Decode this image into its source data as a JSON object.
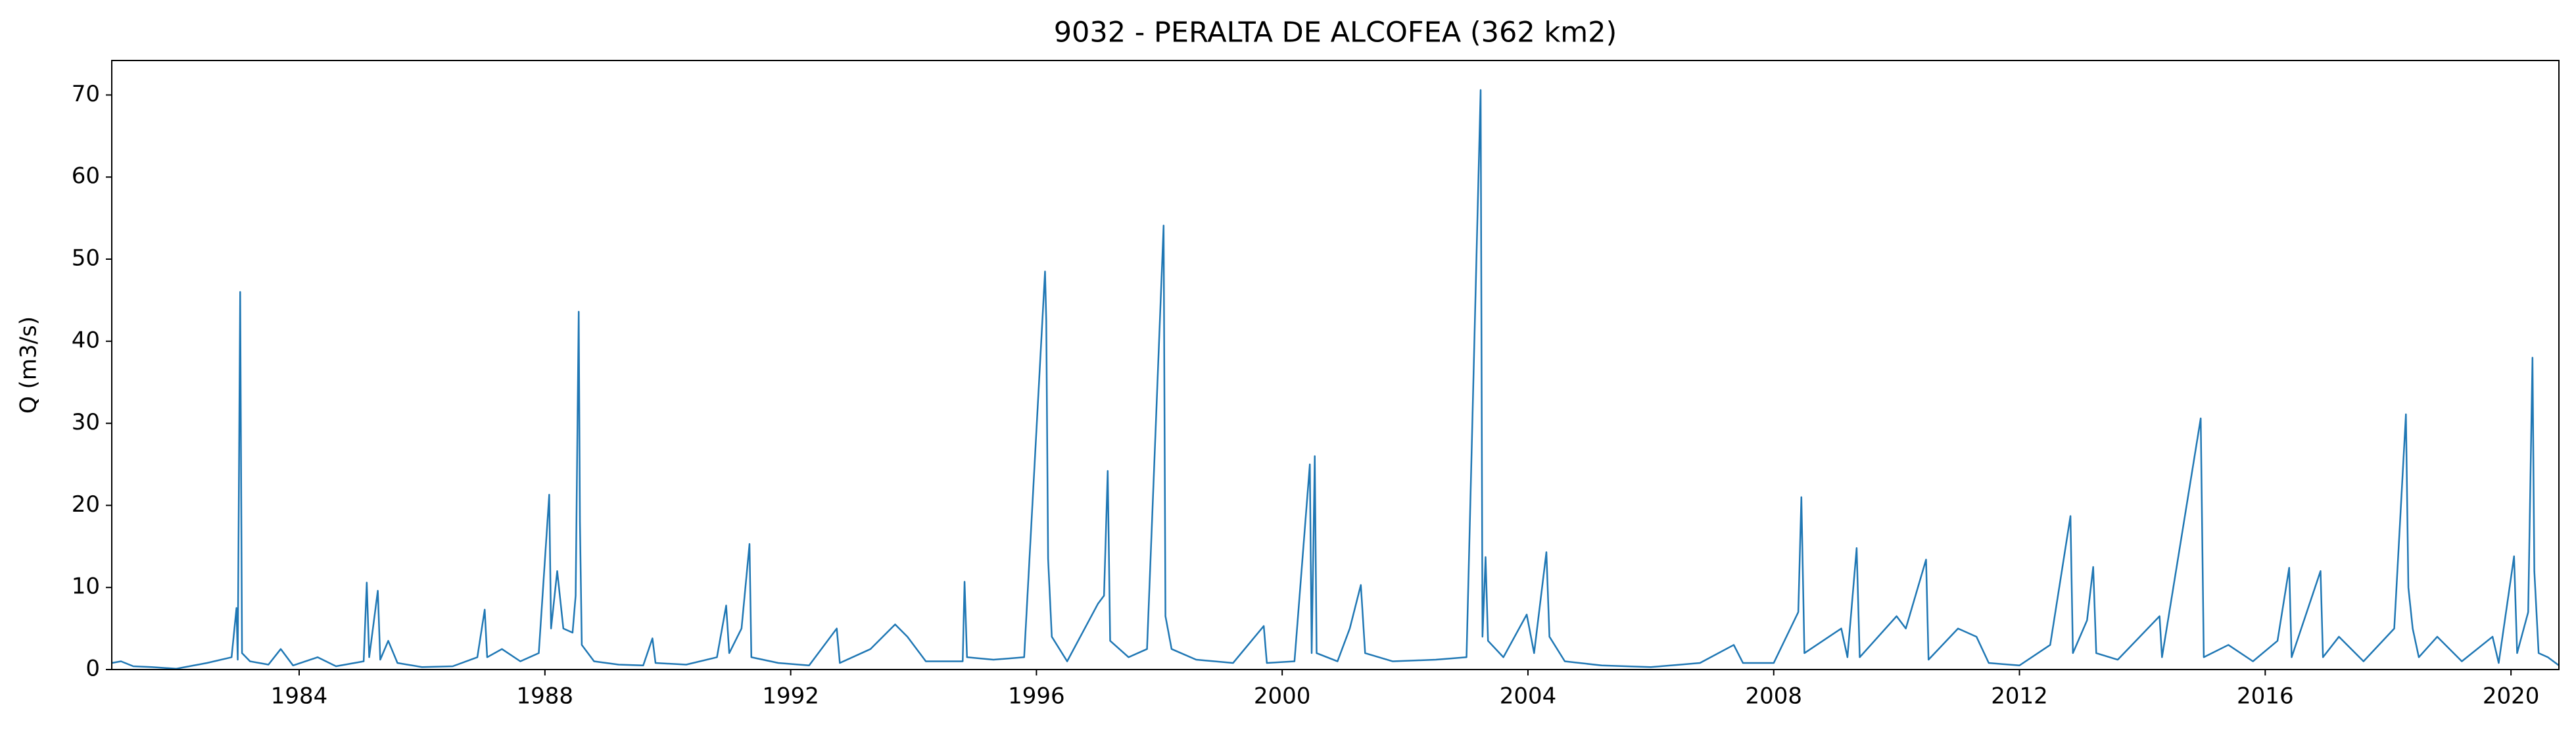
{
  "chart_data": {
    "type": "line",
    "title": "9032 - PERALTA DE ALCOFEA (362 km2)",
    "y_label": "Q (m3/s)",
    "color": "#1f77b4",
    "x": [
      1980.95,
      1981.1,
      1981.3,
      1981.6,
      1982.0,
      1982.5,
      1982.9,
      1982.98,
      1983.0,
      1983.04,
      1983.07,
      1983.2,
      1983.5,
      1983.7,
      1983.9,
      1984.3,
      1984.6,
      1985.05,
      1985.1,
      1985.14,
      1985.28,
      1985.32,
      1985.45,
      1985.6,
      1986.0,
      1986.5,
      1986.9,
      1987.02,
      1987.06,
      1987.3,
      1987.6,
      1987.9,
      1988.07,
      1988.1,
      1988.2,
      1988.3,
      1988.45,
      1988.5,
      1988.55,
      1988.57,
      1988.6,
      1988.8,
      1989.2,
      1989.6,
      1989.75,
      1989.8,
      1990.3,
      1990.8,
      1990.95,
      1991.0,
      1991.2,
      1991.33,
      1991.36,
      1991.8,
      1992.3,
      1992.75,
      1992.8,
      1993.3,
      1993.7,
      1993.9,
      1994.2,
      1994.8,
      1994.83,
      1994.87,
      1995.3,
      1995.8,
      1996.14,
      1996.16,
      1996.19,
      1996.25,
      1996.5,
      1997.0,
      1997.1,
      1997.16,
      1997.2,
      1997.5,
      1997.8,
      1998.07,
      1998.1,
      1998.2,
      1998.6,
      1999.2,
      1999.7,
      1999.75,
      2000.2,
      2000.45,
      2000.48,
      2000.53,
      2000.56,
      2000.9,
      2001.1,
      2001.28,
      2001.35,
      2001.8,
      2002.5,
      2003.0,
      2003.23,
      2003.26,
      2003.31,
      2003.35,
      2003.6,
      2003.98,
      2004.1,
      2004.3,
      2004.35,
      2004.6,
      2005.2,
      2006.0,
      2006.8,
      2007.35,
      2007.5,
      2008.0,
      2008.4,
      2008.45,
      2008.5,
      2009.1,
      2009.2,
      2009.35,
      2009.4,
      2010.0,
      2010.15,
      2010.48,
      2010.52,
      2011.0,
      2011.3,
      2011.5,
      2012.0,
      2012.5,
      2012.83,
      2012.87,
      2013.1,
      2013.2,
      2013.25,
      2013.6,
      2014.28,
      2014.32,
      2014.95,
      2015.0,
      2015.4,
      2015.8,
      2016.2,
      2016.39,
      2016.43,
      2016.9,
      2016.94,
      2017.2,
      2017.6,
      2018.1,
      2018.29,
      2018.33,
      2018.4,
      2018.5,
      2018.8,
      2019.2,
      2019.7,
      2019.8,
      2020.05,
      2020.1,
      2020.28,
      2020.35,
      2020.38,
      2020.45,
      2020.6,
      2020.78
    ],
    "values": [
      0.8,
      1.0,
      0.4,
      0.3,
      0.1,
      0.8,
      1.5,
      7.5,
      1.2,
      46,
      2,
      1.0,
      0.6,
      2.5,
      0.5,
      1.5,
      0.4,
      1,
      10.6,
      1.5,
      9.6,
      1.2,
      3.5,
      0.8,
      0.3,
      0.4,
      1.5,
      7.3,
      1.5,
      2.5,
      1.0,
      2,
      21.3,
      5,
      12,
      5,
      4.5,
      9,
      43.6,
      18,
      3,
      1.0,
      0.6,
      0.5,
      3.8,
      0.8,
      0.6,
      1.5,
      7.8,
      2,
      5,
      15.3,
      1.5,
      0.8,
      0.5,
      5,
      0.8,
      2.5,
      5.5,
      4,
      1.0,
      1.0,
      10.7,
      1.5,
      1.2,
      1.5,
      48.5,
      42.5,
      13.5,
      4,
      1.0,
      8,
      9,
      24.2,
      3.5,
      1.5,
      2.5,
      54.1,
      6.5,
      2.5,
      1.2,
      0.8,
      5.3,
      0.8,
      1,
      25,
      2,
      26,
      2,
      1.0,
      5,
      10.3,
      2,
      1.0,
      1.2,
      1.5,
      70.6,
      4,
      13.7,
      3.5,
      1.5,
      6.7,
      2,
      14.3,
      4,
      1,
      0.5,
      0.3,
      0.8,
      3,
      0.8,
      0.8,
      7,
      21,
      2,
      5,
      1.5,
      14.8,
      1.5,
      6.5,
      5,
      13.4,
      1.2,
      5,
      4,
      0.8,
      0.5,
      3,
      18.7,
      2,
      6,
      12.5,
      2,
      1.2,
      6.5,
      1.5,
      30.6,
      1.5,
      3,
      1,
      3.5,
      12.4,
      1.5,
      12,
      1.5,
      4,
      1.0,
      5,
      31.1,
      10,
      5,
      1.5,
      4,
      1,
      4,
      0.8,
      13.8,
      2,
      7,
      38,
      12,
      2,
      1.5,
      0.5
    ],
    "xlim": [
      1980.95,
      2020.78
    ],
    "xticks": [
      1984,
      1988,
      1992,
      1996,
      2000,
      2004,
      2008,
      2012,
      2016,
      2020
    ],
    "ylim": [
      0,
      74.2
    ],
    "yticks": [
      0,
      10,
      20,
      30,
      40,
      50,
      60,
      70
    ],
    "grid": false
  }
}
